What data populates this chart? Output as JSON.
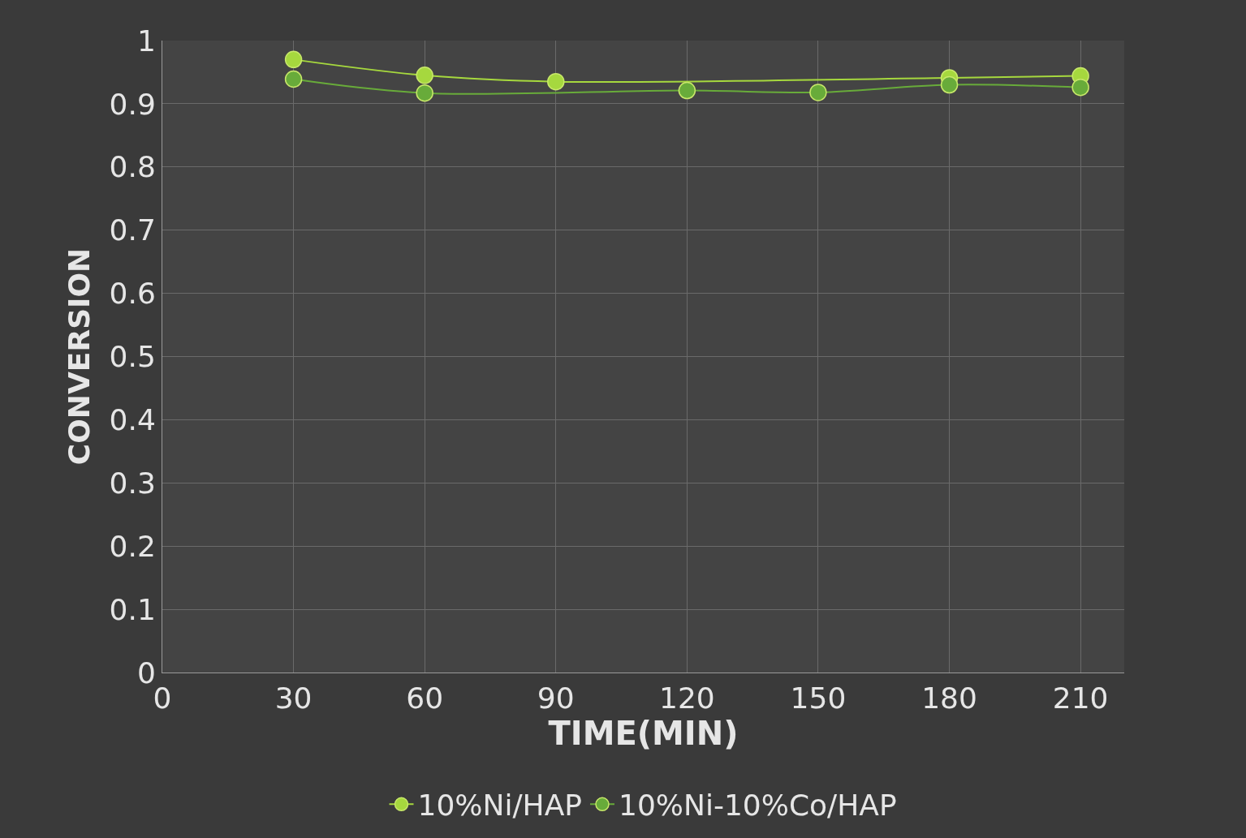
{
  "chart_data": {
    "type": "line",
    "xlabel": "TIME(MIN)",
    "ylabel": "CONVERSION",
    "x": [
      30,
      60,
      90,
      120,
      150,
      180,
      210
    ],
    "series": [
      {
        "name": "10%Ni/HAP",
        "color": "#a6d83e",
        "values": [
          0.97,
          0.945,
          0.935,
          null,
          null,
          0.941,
          0.944
        ]
      },
      {
        "name": "10%Ni-10%Co/HAP",
        "color": "#68ab3a",
        "values": [
          0.939,
          0.917,
          null,
          0.921,
          0.918,
          0.93,
          0.926
        ]
      }
    ],
    "xlim": [
      0,
      220
    ],
    "xticks": [
      0,
      30,
      60,
      90,
      120,
      150,
      180,
      210
    ],
    "ylim": [
      0,
      1
    ],
    "yticks": [
      0,
      0.1,
      0.2,
      0.3,
      0.4,
      0.5,
      0.6,
      0.7,
      0.8,
      0.9,
      1
    ],
    "grid": true,
    "legend": "bottom",
    "marker": "circle",
    "line_style": "solid"
  }
}
